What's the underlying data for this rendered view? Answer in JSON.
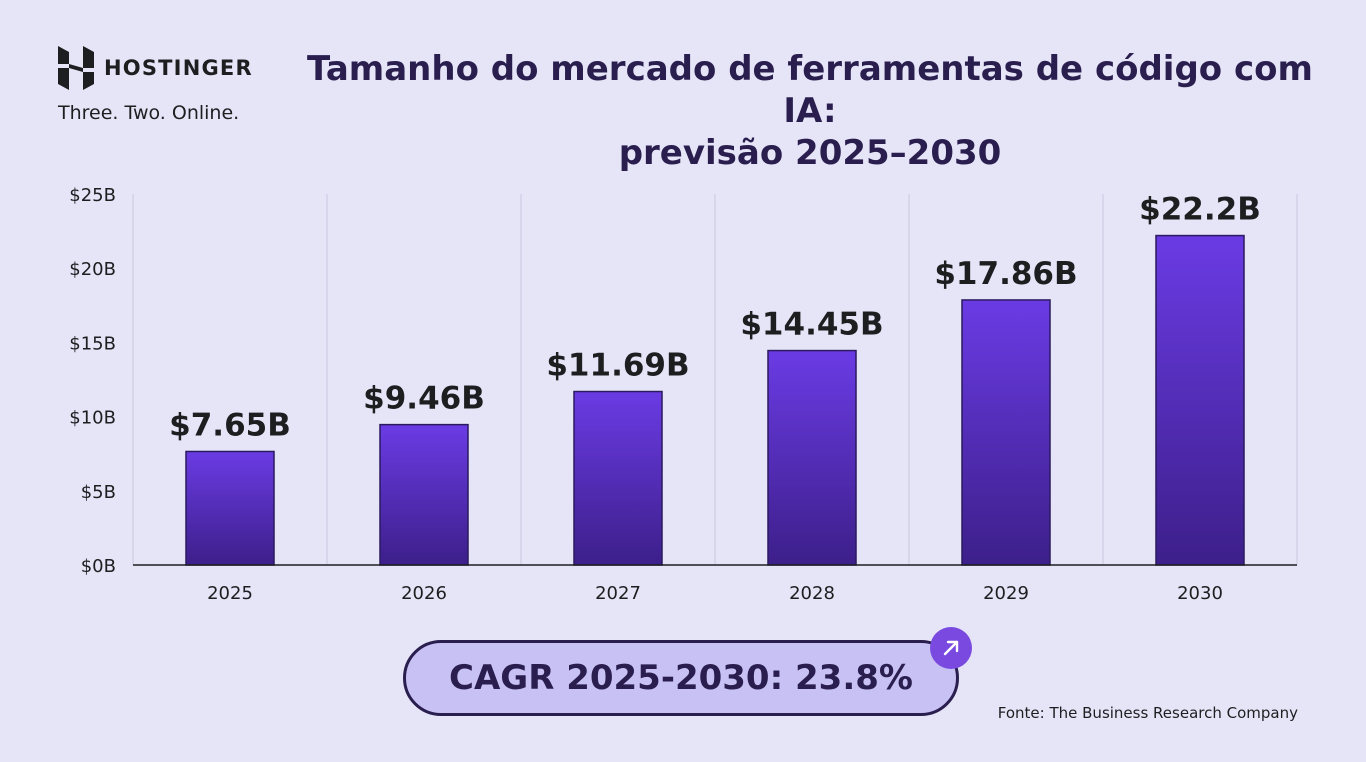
{
  "brand": {
    "name": "HOSTINGER",
    "tagline": "Three. Two. Online."
  },
  "title": {
    "line1": "Tamanho do mercado de ferramentas de código com IA:",
    "line2": "previsão 2025–2030"
  },
  "chart_data": {
    "type": "bar",
    "categories": [
      "2025",
      "2026",
      "2027",
      "2028",
      "2029",
      "2030"
    ],
    "values": [
      7.65,
      9.46,
      11.69,
      14.45,
      17.86,
      22.2
    ],
    "data_labels": [
      "$7.65B",
      "$9.46B",
      "$11.69B",
      "$14.45B",
      "$17.86B",
      "$22.2B"
    ],
    "ylim": [
      0,
      25
    ],
    "yticks": [
      0,
      5,
      10,
      15,
      20,
      25
    ],
    "ytick_labels": [
      "$0B",
      "$5B",
      "$10B",
      "$15B",
      "$20B",
      "$25B"
    ],
    "grid": "vertical",
    "bar_color_top": "#6a3be4",
    "bar_color_bottom": "#3d1f8a"
  },
  "cagr": {
    "label": "CAGR 2025-2030: 23.8%",
    "icon": "arrow-up-right-icon"
  },
  "source": "Fonte: The Business Research Company",
  "colors": {
    "background": "#e6e5f8",
    "title": "#2a1e4f",
    "pill_fill": "#c8c1f4",
    "badge": "#7a4ae0"
  }
}
